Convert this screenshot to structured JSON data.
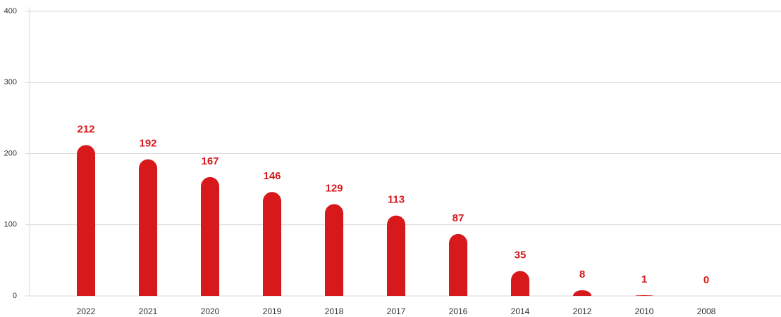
{
  "chart_data": {
    "type": "bar",
    "categories": [
      "2022",
      "2021",
      "2020",
      "2019",
      "2018",
      "2017",
      "2016",
      "2014",
      "2012",
      "2010",
      "2008"
    ],
    "values": [
      212,
      192,
      167,
      146,
      129,
      113,
      87,
      35,
      8,
      1,
      0
    ],
    "color": "#d7191c",
    "ylim": [
      0,
      400
    ],
    "yticks": [
      0,
      100,
      200,
      300,
      400
    ],
    "grid": true
  }
}
